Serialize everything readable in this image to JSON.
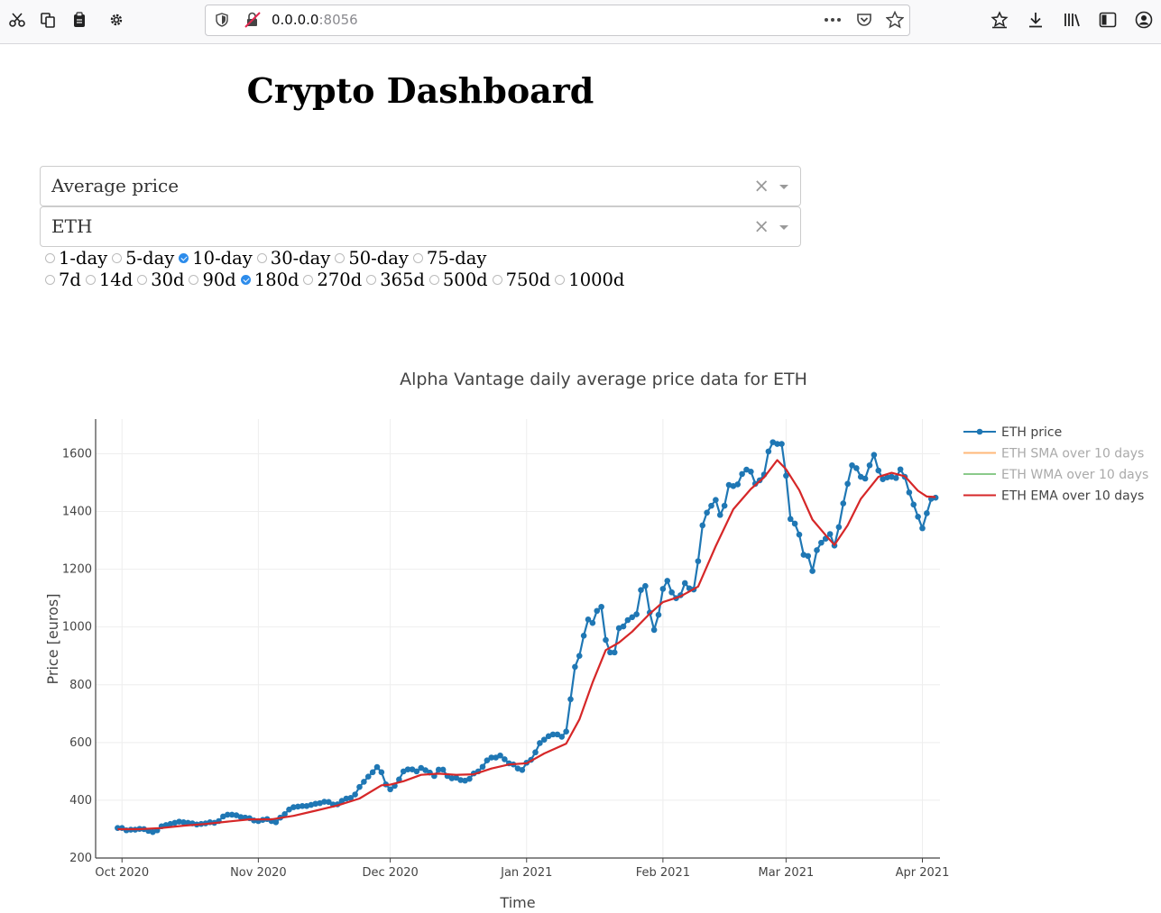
{
  "browser": {
    "url_host": "0.0.0.0",
    "url_port": ":8056"
  },
  "page": {
    "title": "Crypto Dashboard"
  },
  "controls": {
    "metric_dropdown": {
      "value": "Average price"
    },
    "asset_dropdown": {
      "value": "ETH"
    },
    "clear_symbol": "×",
    "ma_windows": [
      {
        "label": "1-day",
        "checked": false
      },
      {
        "label": "5-day",
        "checked": false
      },
      {
        "label": "10-day",
        "checked": true
      },
      {
        "label": "30-day",
        "checked": false
      },
      {
        "label": "50-day",
        "checked": false
      },
      {
        "label": "75-day",
        "checked": false
      }
    ],
    "ranges": [
      {
        "label": "7d",
        "checked": false
      },
      {
        "label": "14d",
        "checked": false
      },
      {
        "label": "30d",
        "checked": false
      },
      {
        "label": "90d",
        "checked": false
      },
      {
        "label": "180d",
        "checked": true
      },
      {
        "label": "270d",
        "checked": false
      },
      {
        "label": "365d",
        "checked": false
      },
      {
        "label": "500d",
        "checked": false
      },
      {
        "label": "750d",
        "checked": false
      },
      {
        "label": "1000d",
        "checked": false
      }
    ]
  },
  "chart_data": {
    "type": "line",
    "title": "Alpha Vantage daily average price data for ETH",
    "xlabel": "Time",
    "ylabel": "Price [euros]",
    "x_range": [
      "2020-09-25",
      "2021-04-05"
    ],
    "ylim": [
      200,
      1720
    ],
    "y_ticks": [
      200,
      400,
      600,
      800,
      1000,
      1200,
      1400,
      1600
    ],
    "x_ticks": [
      {
        "date": "2020-10-01",
        "label": "Oct 2020"
      },
      {
        "date": "2020-11-01",
        "label": "Nov 2020"
      },
      {
        "date": "2020-12-01",
        "label": "Dec 2020"
      },
      {
        "date": "2021-01-01",
        "label": "Jan 2021"
      },
      {
        "date": "2021-02-01",
        "label": "Feb 2021"
      },
      {
        "date": "2021-03-01",
        "label": "Mar 2021"
      },
      {
        "date": "2021-04-01",
        "label": "Apr 2021"
      }
    ],
    "grid": true,
    "legend_position": "top-right",
    "series": [
      {
        "name": "ETH price",
        "color": "#1f77b4",
        "visible": true,
        "markers": true,
        "points": [
          [
            "2020-09-30",
            304
          ],
          [
            "2020-10-01",
            304
          ],
          [
            "2020-10-02",
            296
          ],
          [
            "2020-10-03",
            298
          ],
          [
            "2020-10-04",
            298
          ],
          [
            "2020-10-05",
            301
          ],
          [
            "2020-10-06",
            300
          ],
          [
            "2020-10-07",
            294
          ],
          [
            "2020-10-08",
            290
          ],
          [
            "2020-10-09",
            296
          ],
          [
            "2020-10-10",
            310
          ],
          [
            "2020-10-11",
            314
          ],
          [
            "2020-10-12",
            318
          ],
          [
            "2020-10-13",
            322
          ],
          [
            "2020-10-14",
            326
          ],
          [
            "2020-10-15",
            324
          ],
          [
            "2020-10-16",
            322
          ],
          [
            "2020-10-17",
            320
          ],
          [
            "2020-10-18",
            316
          ],
          [
            "2020-10-19",
            318
          ],
          [
            "2020-10-20",
            320
          ],
          [
            "2020-10-21",
            324
          ],
          [
            "2020-10-22",
            322
          ],
          [
            "2020-10-23",
            328
          ],
          [
            "2020-10-24",
            344
          ],
          [
            "2020-10-25",
            350
          ],
          [
            "2020-10-26",
            350
          ],
          [
            "2020-10-27",
            348
          ],
          [
            "2020-10-28",
            342
          ],
          [
            "2020-10-29",
            340
          ],
          [
            "2020-10-30",
            338
          ],
          [
            "2020-10-31",
            330
          ],
          [
            "2020-11-01",
            328
          ],
          [
            "2020-11-02",
            332
          ],
          [
            "2020-11-03",
            335
          ],
          [
            "2020-11-04",
            328
          ],
          [
            "2020-11-05",
            324
          ],
          [
            "2020-11-06",
            340
          ],
          [
            "2020-11-07",
            352
          ],
          [
            "2020-11-08",
            368
          ],
          [
            "2020-11-09",
            376
          ],
          [
            "2020-11-10",
            378
          ],
          [
            "2020-11-11",
            380
          ],
          [
            "2020-11-12",
            380
          ],
          [
            "2020-11-13",
            384
          ],
          [
            "2020-11-14",
            388
          ],
          [
            "2020-11-15",
            390
          ],
          [
            "2020-11-16",
            395
          ],
          [
            "2020-11-17",
            394
          ],
          [
            "2020-11-18",
            385
          ],
          [
            "2020-11-19",
            386
          ],
          [
            "2020-11-20",
            398
          ],
          [
            "2020-11-21",
            406
          ],
          [
            "2020-11-22",
            408
          ],
          [
            "2020-11-23",
            420
          ],
          [
            "2020-11-24",
            446
          ],
          [
            "2020-11-25",
            464
          ],
          [
            "2020-11-26",
            482
          ],
          [
            "2020-11-27",
            497
          ],
          [
            "2020-11-28",
            515
          ],
          [
            "2020-11-29",
            497
          ],
          [
            "2020-11-30",
            455
          ],
          [
            "2020-12-01",
            438
          ],
          [
            "2020-12-02",
            450
          ],
          [
            "2020-12-03",
            472
          ],
          [
            "2020-12-04",
            500
          ],
          [
            "2020-12-05",
            507
          ],
          [
            "2020-12-06",
            507
          ],
          [
            "2020-12-07",
            500
          ],
          [
            "2020-12-08",
            512
          ],
          [
            "2020-12-09",
            504
          ],
          [
            "2020-12-10",
            496
          ],
          [
            "2020-12-11",
            484
          ],
          [
            "2020-12-12",
            506
          ],
          [
            "2020-12-13",
            506
          ],
          [
            "2020-12-14",
            484
          ],
          [
            "2020-12-15",
            476
          ],
          [
            "2020-12-16",
            478
          ],
          [
            "2020-12-17",
            470
          ],
          [
            "2020-12-18",
            468
          ],
          [
            "2020-12-19",
            474
          ],
          [
            "2020-12-20",
            493
          ],
          [
            "2020-12-21",
            500
          ],
          [
            "2020-12-22",
            516
          ],
          [
            "2020-12-23",
            538
          ],
          [
            "2020-12-24",
            548
          ],
          [
            "2020-12-25",
            548
          ],
          [
            "2020-12-26",
            555
          ],
          [
            "2020-12-27",
            542
          ],
          [
            "2020-12-28",
            528
          ],
          [
            "2020-12-29",
            524
          ],
          [
            "2020-12-30",
            510
          ],
          [
            "2020-12-31",
            505
          ],
          [
            "2021-01-01",
            530
          ],
          [
            "2021-01-02",
            540
          ],
          [
            "2021-01-03",
            566
          ],
          [
            "2021-01-04",
            598
          ],
          [
            "2021-01-05",
            610
          ],
          [
            "2021-01-06",
            622
          ],
          [
            "2021-01-07",
            628
          ],
          [
            "2021-01-08",
            628
          ],
          [
            "2021-01-09",
            620
          ],
          [
            "2021-01-10",
            638
          ],
          [
            "2021-01-11",
            750
          ],
          [
            "2021-01-12",
            862
          ],
          [
            "2021-01-13",
            900
          ],
          [
            "2021-01-14",
            970
          ],
          [
            "2021-01-15",
            1026
          ],
          [
            "2021-01-16",
            1014
          ],
          [
            "2021-01-17",
            1056
          ],
          [
            "2021-01-18",
            1070
          ],
          [
            "2021-01-19",
            955
          ],
          [
            "2021-01-20",
            912
          ],
          [
            "2021-01-21",
            912
          ],
          [
            "2021-01-22",
            996
          ],
          [
            "2021-01-23",
            1002
          ],
          [
            "2021-01-24",
            1024
          ],
          [
            "2021-01-25",
            1034
          ],
          [
            "2021-01-26",
            1044
          ],
          [
            "2021-01-27",
            1128
          ],
          [
            "2021-01-28",
            1142
          ],
          [
            "2021-01-29",
            1050
          ],
          [
            "2021-01-30",
            990
          ],
          [
            "2021-01-31",
            1042
          ],
          [
            "2021-02-01",
            1132
          ],
          [
            "2021-02-02",
            1160
          ],
          [
            "2021-02-03",
            1120
          ],
          [
            "2021-02-04",
            1100
          ],
          [
            "2021-02-05",
            1110
          ],
          [
            "2021-02-06",
            1152
          ],
          [
            "2021-02-07",
            1134
          ],
          [
            "2021-02-08",
            1130
          ],
          [
            "2021-02-09",
            1228
          ],
          [
            "2021-02-10",
            1352
          ],
          [
            "2021-02-11",
            1396
          ],
          [
            "2021-02-12",
            1420
          ],
          [
            "2021-02-13",
            1440
          ],
          [
            "2021-02-14",
            1388
          ],
          [
            "2021-02-15",
            1420
          ],
          [
            "2021-02-16",
            1492
          ],
          [
            "2021-02-17",
            1488
          ],
          [
            "2021-02-18",
            1494
          ],
          [
            "2021-02-19",
            1530
          ],
          [
            "2021-02-20",
            1545
          ],
          [
            "2021-02-21",
            1538
          ],
          [
            "2021-02-22",
            1496
          ],
          [
            "2021-02-23",
            1508
          ],
          [
            "2021-02-24",
            1528
          ],
          [
            "2021-02-25",
            1608
          ],
          [
            "2021-02-26",
            1640
          ],
          [
            "2021-02-27",
            1634
          ],
          [
            "2021-02-28",
            1634
          ],
          [
            "2021-03-01",
            1524
          ],
          [
            "2021-03-02",
            1374
          ],
          [
            "2021-03-03",
            1358
          ],
          [
            "2021-03-04",
            1320
          ],
          [
            "2021-03-05",
            1250
          ],
          [
            "2021-03-06",
            1246
          ],
          [
            "2021-03-07",
            1194
          ],
          [
            "2021-03-08",
            1266
          ],
          [
            "2021-03-09",
            1292
          ],
          [
            "2021-03-10",
            1306
          ],
          [
            "2021-03-11",
            1322
          ],
          [
            "2021-03-12",
            1282
          ],
          [
            "2021-03-13",
            1346
          ],
          [
            "2021-03-14",
            1428
          ],
          [
            "2021-03-15",
            1496
          ],
          [
            "2021-03-16",
            1560
          ],
          [
            "2021-03-17",
            1550
          ],
          [
            "2021-03-18",
            1520
          ],
          [
            "2021-03-19",
            1514
          ],
          [
            "2021-03-20",
            1560
          ],
          [
            "2021-03-21",
            1596
          ],
          [
            "2021-03-22",
            1542
          ],
          [
            "2021-03-23",
            1512
          ],
          [
            "2021-03-24",
            1518
          ],
          [
            "2021-03-25",
            1520
          ],
          [
            "2021-03-26",
            1516
          ],
          [
            "2021-03-27",
            1546
          ],
          [
            "2021-03-28",
            1520
          ],
          [
            "2021-03-29",
            1466
          ],
          [
            "2021-03-30",
            1424
          ],
          [
            "2021-03-31",
            1382
          ],
          [
            "2021-04-01",
            1342
          ],
          [
            "2021-04-02",
            1394
          ],
          [
            "2021-04-03",
            1444
          ],
          [
            "2021-04-04",
            1448
          ]
        ]
      },
      {
        "name": "ETH SMA over 10 days",
        "color": "#ff7f0e",
        "visible": false
      },
      {
        "name": "ETH WMA over 10 days",
        "color": "#2ca02c",
        "visible": false
      },
      {
        "name": "ETH EMA over 10 days",
        "color": "#d62728",
        "visible": true,
        "markers": false,
        "points": [
          [
            "2020-09-30",
            300
          ],
          [
            "2020-10-05",
            300
          ],
          [
            "2020-10-10",
            304
          ],
          [
            "2020-10-15",
            312
          ],
          [
            "2020-10-20",
            318
          ],
          [
            "2020-10-25",
            326
          ],
          [
            "2020-10-30",
            334
          ],
          [
            "2020-11-04",
            334
          ],
          [
            "2020-11-09",
            346
          ],
          [
            "2020-11-14",
            364
          ],
          [
            "2020-11-19",
            382
          ],
          [
            "2020-11-24",
            406
          ],
          [
            "2020-11-29",
            452
          ],
          [
            "2020-12-01",
            454
          ],
          [
            "2020-12-04",
            466
          ],
          [
            "2020-12-08",
            488
          ],
          [
            "2020-12-12",
            492
          ],
          [
            "2020-12-16",
            488
          ],
          [
            "2020-12-20",
            490
          ],
          [
            "2020-12-24",
            510
          ],
          [
            "2020-12-28",
            524
          ],
          [
            "2021-01-01",
            528
          ],
          [
            "2021-01-05",
            562
          ],
          [
            "2021-01-10",
            596
          ],
          [
            "2021-01-13",
            680
          ],
          [
            "2021-01-16",
            808
          ],
          [
            "2021-01-19",
            920
          ],
          [
            "2021-01-22",
            946
          ],
          [
            "2021-01-25",
            984
          ],
          [
            "2021-01-29",
            1046
          ],
          [
            "2021-02-01",
            1086
          ],
          [
            "2021-02-05",
            1106
          ],
          [
            "2021-02-09",
            1140
          ],
          [
            "2021-02-13",
            1280
          ],
          [
            "2021-02-17",
            1408
          ],
          [
            "2021-02-21",
            1478
          ],
          [
            "2021-02-24",
            1518
          ],
          [
            "2021-02-27",
            1578
          ],
          [
            "2021-03-01",
            1546
          ],
          [
            "2021-03-04",
            1474
          ],
          [
            "2021-03-07",
            1372
          ],
          [
            "2021-03-10",
            1318
          ],
          [
            "2021-03-12",
            1284
          ],
          [
            "2021-03-15",
            1352
          ],
          [
            "2021-03-18",
            1444
          ],
          [
            "2021-03-22",
            1520
          ],
          [
            "2021-03-25",
            1534
          ],
          [
            "2021-03-28",
            1522
          ],
          [
            "2021-03-31",
            1472
          ],
          [
            "2021-04-02",
            1452
          ],
          [
            "2021-04-04",
            1450
          ]
        ]
      }
    ]
  }
}
